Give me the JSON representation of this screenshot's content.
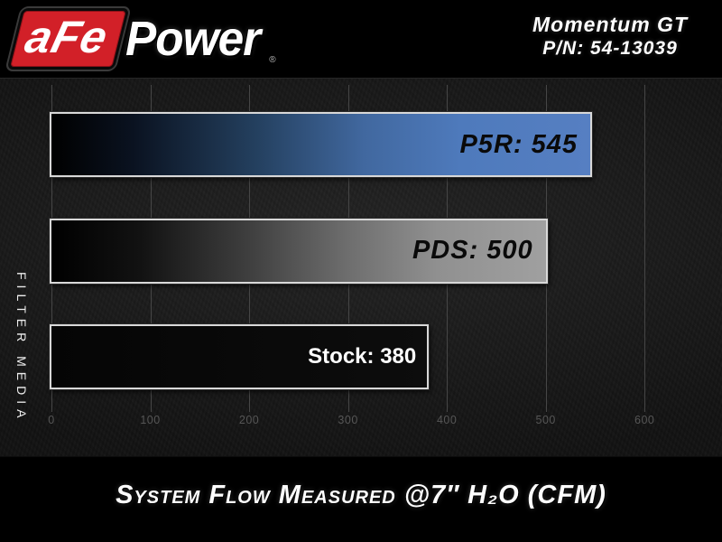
{
  "header": {
    "logo_afe": "aFe",
    "logo_power": "Power",
    "logo_reg": "®",
    "product_name": "Momentum GT",
    "part_number": "P/N: 54-13039"
  },
  "chart_data": {
    "type": "bar",
    "orientation": "horizontal",
    "title": "System Flow Measured @7″ H₂O (CFM)",
    "xlabel": "",
    "ylabel": "FILTER MEDIA",
    "categories": [
      "P5R",
      "PDS",
      "Stock"
    ],
    "values": [
      545,
      500,
      380
    ],
    "x_ticks": [
      0,
      100,
      200,
      300,
      400,
      500,
      600
    ],
    "xlim": [
      0,
      650
    ],
    "grid": "vertical-gridlines-on",
    "legend": "none",
    "bars": [
      {
        "name": "P5R",
        "value": 545,
        "label": "P5R: 545",
        "label_style": "techno",
        "text_color": "#0a0a0a",
        "fill_stops": [
          "#000000 0%",
          "#0a1220 15%",
          "#24405f 38%",
          "#41689f 58%",
          "#4e7abc 76%",
          "#567fc2 100%"
        ]
      },
      {
        "name": "PDS",
        "value": 500,
        "label": "PDS: 500",
        "label_style": "techno",
        "text_color": "#0a0a0a",
        "fill_stops": [
          "#000000 0%",
          "#121212 18%",
          "#3f3f3f 40%",
          "#6e6e6e 60%",
          "#909090 78%",
          "#a0a0a0 100%"
        ]
      },
      {
        "name": "Stock",
        "value": 380,
        "label": "Stock: 380",
        "label_style": "plain",
        "text_color": "#ffffff",
        "fill_stops": [
          "#050505 0%",
          "#0d0d0d 100%"
        ]
      }
    ],
    "colors": {
      "bar_border": "#d8d8d8",
      "gridline": "#464646",
      "tick_text": "#565656",
      "accent_blue": "#4d79bd",
      "accent_silver": "#9c9c9c",
      "logo_red": "#d22028",
      "background": "#000000"
    }
  }
}
